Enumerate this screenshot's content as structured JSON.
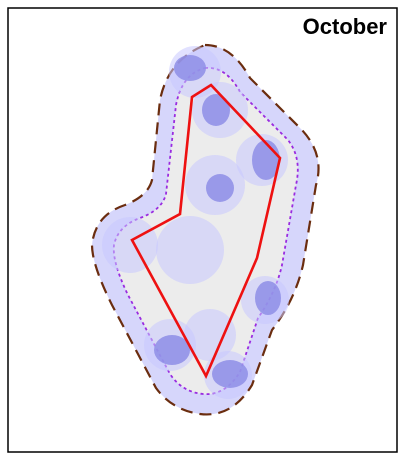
{
  "title": "October"
}
